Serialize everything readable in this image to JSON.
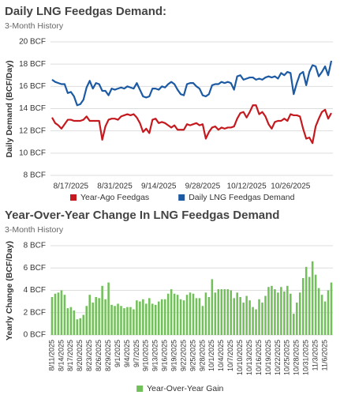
{
  "chart_data": [
    {
      "type": "line",
      "title": "Daily LNG Feedgas Demand:",
      "subtitle": "3-Month History",
      "y_label": "Daily Demand (BCF/Day)",
      "categories": [
        null,
        null,
        null,
        null,
        null,
        null,
        "8/17/2025",
        null,
        null,
        null,
        null,
        null,
        null,
        null,
        null,
        null,
        null,
        null,
        null,
        null,
        "8/31/2025",
        null,
        null,
        null,
        null,
        null,
        null,
        null,
        null,
        null,
        null,
        null,
        null,
        null,
        "9/14/2025",
        null,
        null,
        null,
        null,
        null,
        null,
        null,
        null,
        null,
        null,
        null,
        null,
        null,
        "9/28/2025",
        null,
        null,
        null,
        null,
        null,
        null,
        null,
        null,
        null,
        null,
        null,
        null,
        null,
        "10/12/2025",
        null,
        null,
        null,
        null,
        null,
        null,
        null,
        null,
        null,
        null,
        null,
        null,
        null,
        "10/26/2025",
        null,
        null,
        null,
        null,
        null,
        null,
        null,
        null,
        null,
        null,
        null,
        null,
        null
      ],
      "series": [
        {
          "name": "Year-Ago Feedgas",
          "color": "#c41a1f",
          "values": [
            13.2,
            12.7,
            12.5,
            12.2,
            12.6,
            13.0,
            13.0,
            12.9,
            12.9,
            12.9,
            13.0,
            13.3,
            12.9,
            12.9,
            12.9,
            12.9,
            11.2,
            12.4,
            13.0,
            13.1,
            13.1,
            13.0,
            13.3,
            13.4,
            13.5,
            13.4,
            13.5,
            13.2,
            12.7,
            11.9,
            12.2,
            11.8,
            13.0,
            13.1,
            12.7,
            12.8,
            12.7,
            12.5,
            12.3,
            12.5,
            12.1,
            12.1,
            12.1,
            12.6,
            12.5,
            12.6,
            12.7,
            12.5,
            12.6,
            11.3,
            11.9,
            12.3,
            12.4,
            12.1,
            12.3,
            12.2,
            12.3,
            12.3,
            12.4,
            13.1,
            13.6,
            13.7,
            13.2,
            13.7,
            14.3,
            14.3,
            13.5,
            13.7,
            13.3,
            12.6,
            12.2,
            12.8,
            12.9,
            12.9,
            13.1,
            12.9,
            13.5,
            13.4,
            13.4,
            13.3,
            12.2,
            11.3,
            11.4,
            10.9,
            12.4,
            13.1,
            13.7,
            13.9,
            13.1,
            13.6
          ]
        },
        {
          "name": "Daily LNG Feedgas Demand",
          "color": "#1c5aa3",
          "values": [
            16.6,
            16.4,
            16.3,
            16.2,
            16.2,
            15.4,
            15.5,
            15.1,
            14.3,
            14.4,
            14.8,
            15.9,
            16.5,
            15.8,
            16.3,
            16.2,
            15.6,
            15.6,
            15.2,
            15.8,
            15.7,
            15.8,
            15.9,
            15.8,
            16.0,
            15.9,
            15.8,
            16.3,
            15.7,
            15.1,
            15.0,
            15.1,
            15.8,
            15.8,
            15.7,
            16.0,
            15.9,
            16.2,
            16.4,
            16.2,
            15.7,
            15.3,
            15.2,
            16.2,
            16.3,
            16.3,
            16.0,
            15.8,
            15.2,
            15.1,
            15.3,
            16.1,
            16.2,
            16.2,
            16.4,
            16.3,
            16.4,
            16.3,
            15.7,
            16.9,
            17.0,
            16.6,
            16.7,
            16.8,
            16.8,
            16.6,
            16.7,
            16.6,
            16.8,
            16.9,
            16.8,
            16.9,
            16.7,
            17.2,
            17.0,
            17.3,
            17.2,
            15.3,
            16.3,
            17.1,
            17.3,
            16.1,
            17.3,
            17.9,
            17.8,
            16.9,
            17.3,
            17.8,
            17.0,
            18.3
          ]
        }
      ],
      "ylim": [
        8,
        20
      ],
      "yticks": [
        {
          "value": 8,
          "label": "8 BCF"
        },
        {
          "value": 10,
          "label": "10 BCF"
        },
        {
          "value": 12,
          "label": "12 BCF"
        },
        {
          "value": 14,
          "label": "14 BCF"
        },
        {
          "value": 16,
          "label": "16 BCF"
        },
        {
          "value": 18,
          "label": "18 BCF"
        },
        {
          "value": 20,
          "label": "20 BCF"
        }
      ],
      "grid": true,
      "legend": "bottom"
    },
    {
      "type": "bar",
      "title": "Year-Over-Year Change In LNG Feedgas Demand",
      "subtitle": "3-Month History",
      "y_label": "Yearly Change (BCF/Day)",
      "categories": [
        "8/11/2025",
        null,
        null,
        "8/14/2025",
        null,
        null,
        "8/17/2025",
        null,
        null,
        "8/20/2025",
        null,
        null,
        "8/23/2025",
        null,
        null,
        "8/26/2025",
        null,
        null,
        "8/29/2025",
        null,
        null,
        "9/1/2025",
        null,
        null,
        "9/4/2025",
        null,
        null,
        "9/7/2025",
        null,
        null,
        "9/10/2025",
        null,
        null,
        "9/13/2025",
        null,
        null,
        "9/16/2025",
        null,
        null,
        "9/19/2025",
        null,
        null,
        "9/22/2025",
        null,
        null,
        "9/25/2025",
        null,
        null,
        "9/28/2025",
        null,
        null,
        "10/1/2025",
        null,
        null,
        "10/4/2025",
        null,
        null,
        "10/7/2025",
        null,
        null,
        "10/10/2025",
        null,
        null,
        "10/13/2025",
        null,
        null,
        "10/16/2025",
        null,
        null,
        "10/19/2025",
        null,
        null,
        "10/22/2025",
        null,
        null,
        "10/25/2025",
        null,
        null,
        "10/28/2025",
        null,
        null,
        "10/31/2025",
        null,
        null,
        "11/3/2025",
        null,
        null,
        "11/6/2025",
        null,
        null
      ],
      "series": [
        {
          "name": "Year-Over-Year Gain",
          "color": "#72c05a",
          "values": [
            3.4,
            3.7,
            3.8,
            4.0,
            3.6,
            2.4,
            2.5,
            2.2,
            1.4,
            1.5,
            1.8,
            2.6,
            3.6,
            2.9,
            3.4,
            3.3,
            4.4,
            3.2,
            4.7,
            2.7,
            2.6,
            2.8,
            2.6,
            2.4,
            2.5,
            2.5,
            2.3,
            3.1,
            3.0,
            3.2,
            2.8,
            3.3,
            2.8,
            2.7,
            3.0,
            3.2,
            3.2,
            3.7,
            4.1,
            3.7,
            3.6,
            3.2,
            3.1,
            3.6,
            3.8,
            3.7,
            3.3,
            3.3,
            2.6,
            3.8,
            3.4,
            5.0,
            3.8,
            4.1,
            4.1,
            4.1,
            4.1,
            4.0,
            3.3,
            3.8,
            3.4,
            2.9,
            3.5,
            3.1,
            2.5,
            2.3,
            3.2,
            2.9,
            3.5,
            4.3,
            4.4,
            4.1,
            3.8,
            4.3,
            3.9,
            4.4,
            3.7,
            1.9,
            2.9,
            3.8,
            5.1,
            6.1,
            5.2,
            6.6,
            5.4,
            4.2,
            3.6,
            3.0,
            4.0,
            4.7
          ]
        }
      ],
      "ylim": [
        0,
        8
      ],
      "yticks": [
        {
          "value": 0,
          "label": "0 BCF"
        },
        {
          "value": 2,
          "label": "2 BCF"
        },
        {
          "value": 4,
          "label": "4 BCF"
        },
        {
          "value": 6,
          "label": "6 BCF"
        },
        {
          "value": 8,
          "label": "8 BCF"
        }
      ],
      "grid": true,
      "legend": "bottom"
    }
  ]
}
